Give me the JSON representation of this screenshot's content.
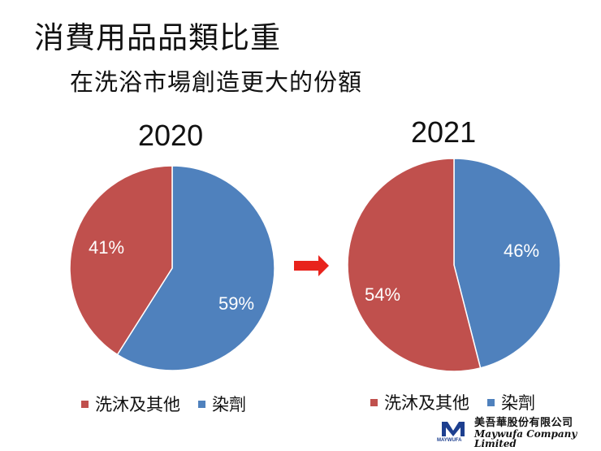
{
  "title": "消費用品品類比重",
  "subtitle": "在洗浴市場創造更大的份額",
  "colors": {
    "red": "#C0504D",
    "blue": "#4F81BD",
    "arrow": "#E8231C",
    "logo_blue": "#1d3f8f"
  },
  "chart_data": [
    {
      "type": "pie",
      "title": "2020",
      "categories": [
        "洗沐及其他",
        "染劑"
      ],
      "values": [
        41,
        59
      ],
      "labels": [
        "41%",
        "59%"
      ],
      "legend": "bottom"
    },
    {
      "type": "pie",
      "title": "2021",
      "categories": [
        "洗沐及其他",
        "染劑"
      ],
      "values": [
        54,
        46
      ],
      "labels": [
        "54%",
        "46%"
      ],
      "legend": "bottom"
    }
  ],
  "logo": {
    "mark_text": "MAYWUFA",
    "name_cn": "美吾華股份有限公司",
    "name_en": "Maywufa Company Limited"
  }
}
